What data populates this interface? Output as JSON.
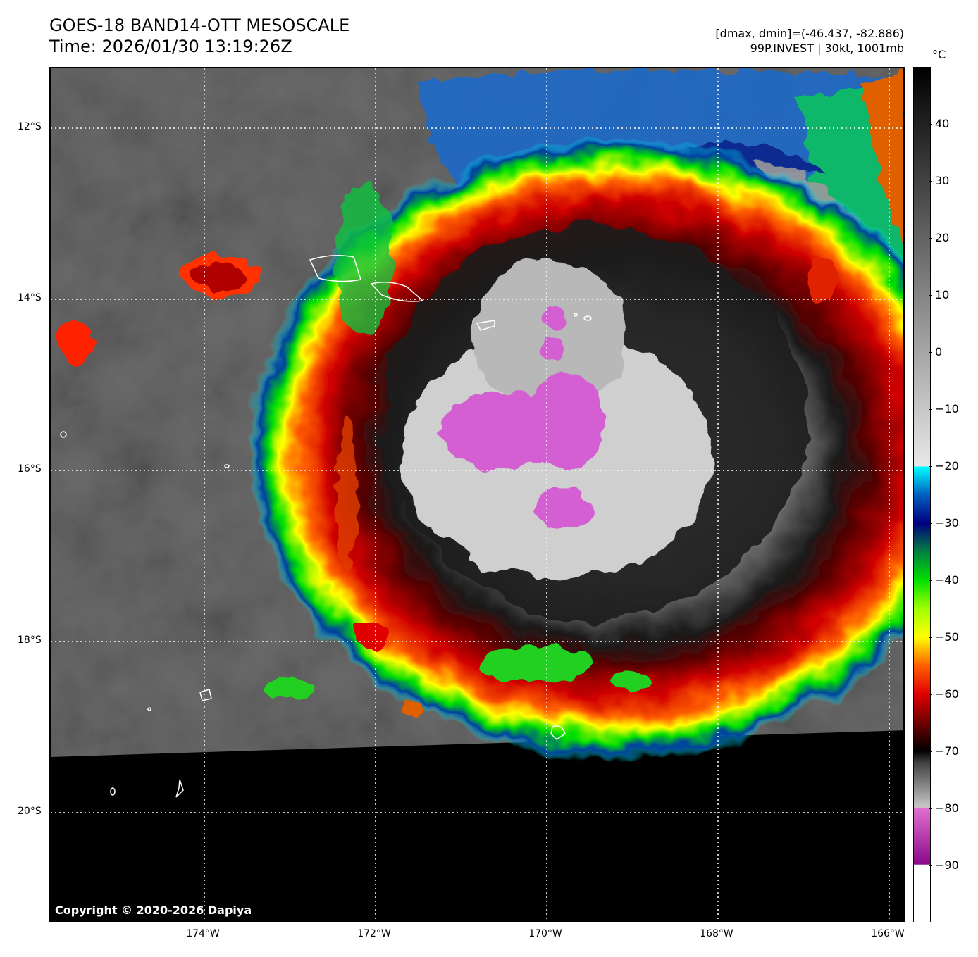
{
  "header": {
    "title": "GOES-18 BAND14-OTT MESOSCALE",
    "time": "Time: 2026/01/30 13:19:26Z",
    "range": "[dmax, dmin]=(-46.437, -82.886)",
    "storm": "99P.INVEST | 30kt, 1001mb"
  },
  "map": {
    "lat_labels": [
      "12°S",
      "14°S",
      "16°S",
      "18°S",
      "20°S"
    ],
    "lon_labels": [
      "174°W",
      "172°W",
      "170°W",
      "168°W",
      "166°W"
    ],
    "copyright": "Copyright © 2020-2026 Dapiya"
  },
  "colorbar": {
    "unit": "°C",
    "labels": [
      "40",
      "30",
      "20",
      "10",
      "0",
      "−10",
      "−20",
      "−30",
      "−40",
      "−50",
      "−60",
      "−70",
      "−80",
      "−90"
    ],
    "values": [
      40,
      30,
      20,
      10,
      0,
      -10,
      -20,
      -30,
      -40,
      -50,
      -60,
      -70,
      -80,
      -90
    ],
    "range": [
      -100,
      50
    ],
    "stops": [
      {
        "t": -100,
        "color": "#ffffff"
      },
      {
        "t": -90,
        "color": "#ffffff"
      },
      {
        "t": -89.9,
        "color": "#8a0a8a"
      },
      {
        "t": -80,
        "color": "#e070d0"
      },
      {
        "t": -79.9,
        "color": "#c8c8c8"
      },
      {
        "t": -72,
        "color": "#404040"
      },
      {
        "t": -70,
        "color": "#000000"
      },
      {
        "t": -66,
        "color": "#5a0000"
      },
      {
        "t": -60,
        "color": "#e00000"
      },
      {
        "t": -55,
        "color": "#ff6000"
      },
      {
        "t": -50,
        "color": "#ffff00"
      },
      {
        "t": -45,
        "color": "#a0ff00"
      },
      {
        "t": -40,
        "color": "#00e000"
      },
      {
        "t": -35,
        "color": "#008040"
      },
      {
        "t": -30,
        "color": "#000080"
      },
      {
        "t": -25,
        "color": "#0060c0"
      },
      {
        "t": -20.1,
        "color": "#00ffff"
      },
      {
        "t": -20,
        "color": "#e8e8e8"
      },
      {
        "t": 50,
        "color": "#000000"
      }
    ]
  },
  "colors": {
    "cloud_bg": "#5a5a5a",
    "nodata": "#000000",
    "coast": "#ffffff",
    "grid": "#ffffff"
  }
}
